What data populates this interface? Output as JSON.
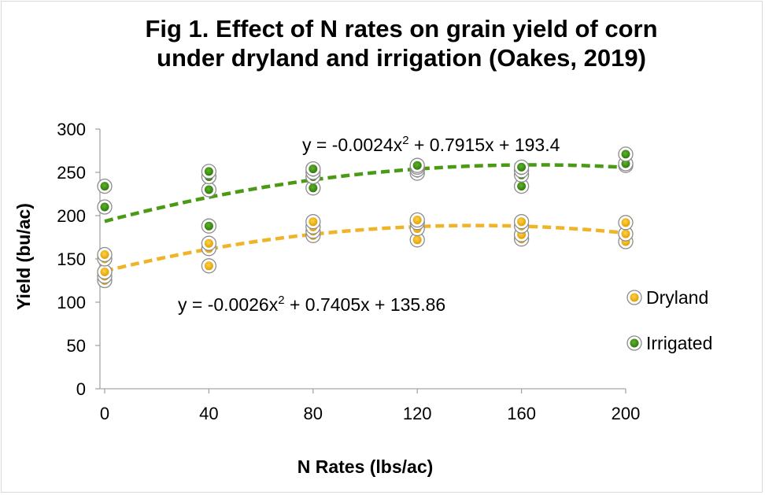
{
  "chart_data": {
    "type": "scatter",
    "title_line1": "Fig 1. Effect of N rates on grain yield of corn",
    "title_line2": "under dryland and irrigation (Oakes, 2019)",
    "xlabel": "N Rates (lbs/ac)",
    "ylabel": "Yield (bu/ac)",
    "xlim": [
      0,
      200
    ],
    "ylim": [
      0,
      300
    ],
    "xticks": [
      "0",
      "40",
      "80",
      "120",
      "160",
      "200"
    ],
    "yticks": [
      "0",
      "50",
      "100",
      "150",
      "200",
      "250",
      "300"
    ],
    "grid": false,
    "legend_position": "right",
    "series": [
      {
        "name": "Dryland",
        "color": "#f0b400",
        "trend_color": "#f0b429",
        "x": [
          0,
          0,
          0,
          0,
          0,
          40,
          40,
          40,
          80,
          80,
          80,
          80,
          120,
          120,
          120,
          120,
          160,
          160,
          160,
          160,
          200,
          200,
          200
        ],
        "y": [
          125,
          130,
          135,
          150,
          155,
          142,
          162,
          168,
          177,
          182,
          187,
          193,
          172,
          185,
          192,
          195,
          173,
          178,
          188,
          193,
          170,
          179,
          192
        ],
        "trendline": {
          "a": -0.0026,
          "b": 0.7405,
          "c": 135.86,
          "equation": "y = -0.0026x",
          "sup": "2",
          "equation_rest": " + 0.7405x + 135.86"
        }
      },
      {
        "name": "Irrigated",
        "color": "#3a8a10",
        "trend_color": "#4a9a14",
        "x": [
          0,
          0,
          40,
          40,
          40,
          40,
          80,
          80,
          80,
          80,
          120,
          120,
          120,
          120,
          160,
          160,
          160,
          160,
          200,
          200,
          200
        ],
        "y": [
          210,
          234,
          188,
          230,
          245,
          251,
          232,
          245,
          250,
          254,
          249,
          253,
          256,
          258,
          234,
          247,
          252,
          256,
          258,
          260,
          271
        ],
        "trendline": {
          "a": -0.0024,
          "b": 0.7915,
          "c": 193.4,
          "equation": "y = -0.0024x",
          "sup": "2",
          "equation_rest": " + 0.7915x + 193.4"
        }
      }
    ]
  }
}
